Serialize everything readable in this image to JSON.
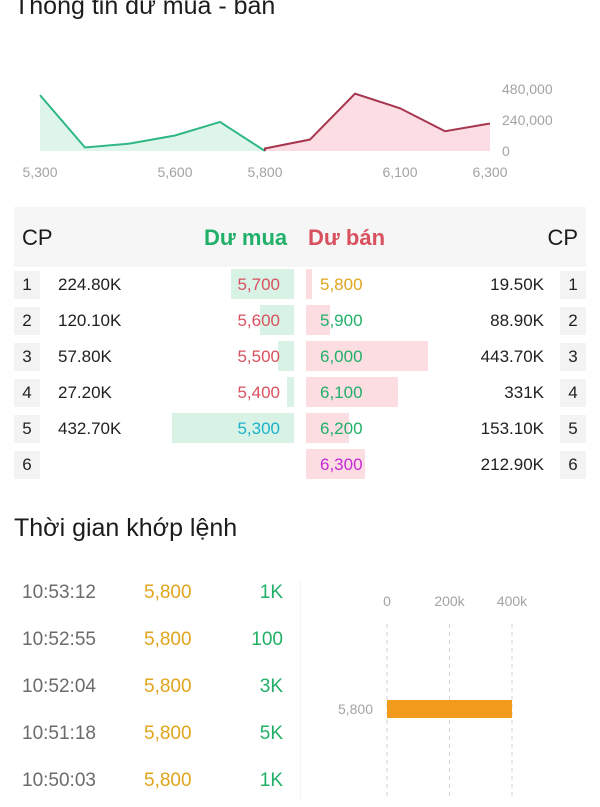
{
  "colors": {
    "buy": "#21b06a",
    "sell": "#d8515e",
    "reference": "#e0a51d",
    "ceiling": "#c629d6",
    "floor": "#1bb3c9",
    "buy_area": "#def6ea",
    "sell_area": "#fbdde3",
    "volume_bar": "#f19a1b"
  },
  "depth_section": {
    "title": "Thông tin dư mua - bán"
  },
  "chart_data": [
    {
      "type": "area",
      "name": "depth",
      "x_ticks": [
        "5,300",
        "5,600",
        "5,800",
        "6,100",
        "6,300"
      ],
      "y_ticks": [
        "480,000",
        "240,000",
        "0"
      ],
      "ylim": [
        0,
        480000
      ],
      "xlim": [
        5300,
        6300
      ],
      "buy_points": [
        [
          5300,
          432700
        ],
        [
          5400,
          27200
        ],
        [
          5500,
          57800
        ],
        [
          5600,
          120100
        ],
        [
          5700,
          224800
        ],
        [
          5800,
          0
        ]
      ],
      "sell_points": [
        [
          5800,
          19500
        ],
        [
          5900,
          88900
        ],
        [
          6000,
          443700
        ],
        [
          6100,
          331000
        ],
        [
          6200,
          153100
        ],
        [
          6300,
          212900
        ]
      ]
    },
    {
      "type": "bar",
      "name": "matched_volume",
      "orientation": "horizontal",
      "categories": [
        "5,800"
      ],
      "values": [
        400000
      ],
      "x_ticks": [
        "0",
        "200k",
        "400k"
      ],
      "xlim": [
        0,
        400000
      ],
      "grid": true
    }
  ],
  "order_book": {
    "cp_left": "CP",
    "cp_right": "CP",
    "buy_title": "Dư mua",
    "sell_title": "Dư bán",
    "rows": [
      {
        "rank": "1",
        "buy_vol": "224.80K",
        "buy_price": "5,700",
        "buy_color": "#d8515e",
        "buy_fill": 0.52,
        "sell_price": "5,800",
        "sell_color": "#e0a51d",
        "sell_vol": "19.50K",
        "sell_fill": 0.05
      },
      {
        "rank": "2",
        "buy_vol": "120.10K",
        "buy_price": "5,600",
        "buy_color": "#d8515e",
        "buy_fill": 0.28,
        "sell_price": "5,900",
        "sell_color": "#21b06a",
        "sell_vol": "88.90K",
        "sell_fill": 0.2
      },
      {
        "rank": "3",
        "buy_vol": "57.80K",
        "buy_price": "5,500",
        "buy_color": "#d8515e",
        "buy_fill": 0.13,
        "sell_price": "6,000",
        "sell_color": "#21b06a",
        "sell_vol": "443.70K",
        "sell_fill": 1.0
      },
      {
        "rank": "4",
        "buy_vol": "27.20K",
        "buy_price": "5,400",
        "buy_color": "#d8515e",
        "buy_fill": 0.06,
        "sell_price": "6,100",
        "sell_color": "#21b06a",
        "sell_vol": "331K",
        "sell_fill": 0.75
      },
      {
        "rank": "5",
        "buy_vol": "432.70K",
        "buy_price": "5,300",
        "buy_color": "#1bb3c9",
        "buy_fill": 1.0,
        "sell_price": "6,200",
        "sell_color": "#21b06a",
        "sell_vol": "153.10K",
        "sell_fill": 0.35
      },
      {
        "rank": "6",
        "buy_vol": "",
        "buy_price": "",
        "buy_color": "#d8515e",
        "buy_fill": 0,
        "sell_price": "6,300",
        "sell_color": "#c629d6",
        "sell_vol": "212.90K",
        "sell_fill": 0.48
      }
    ]
  },
  "trades_section": {
    "title": "Thời gian khớp lệnh",
    "trades": [
      {
        "time": "10:53:12",
        "price": "5,800",
        "volume": "1K"
      },
      {
        "time": "10:52:55",
        "price": "5,800",
        "volume": "100"
      },
      {
        "time": "10:52:04",
        "price": "5,800",
        "volume": "3K"
      },
      {
        "time": "10:51:18",
        "price": "5,800",
        "volume": "5K"
      },
      {
        "time": "10:50:03",
        "price": "5,800",
        "volume": "1K"
      }
    ]
  }
}
